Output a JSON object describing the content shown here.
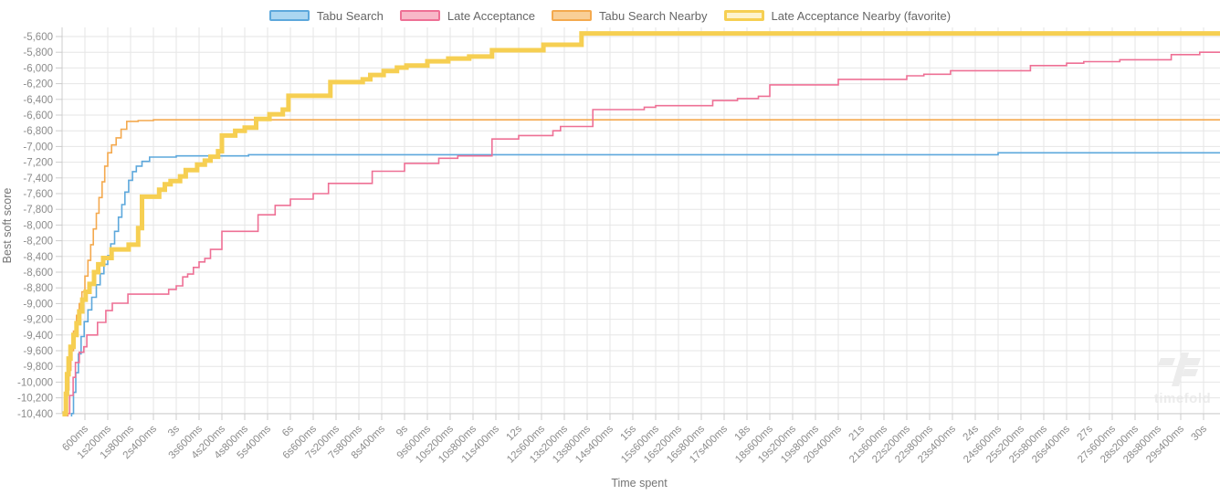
{
  "legend": {
    "items": [
      {
        "label": "Tabu Search",
        "line_color": "#5da8dc",
        "swatch_fill": "#abd6f1",
        "favorite": false
      },
      {
        "label": "Late Acceptance",
        "line_color": "#ee7095",
        "swatch_fill": "#f8b8c8",
        "favorite": false
      },
      {
        "label": "Tabu Search Nearby",
        "line_color": "#f4a94e",
        "swatch_fill": "#f9cf97",
        "favorite": false
      },
      {
        "label": "Late Acceptance Nearby (favorite)",
        "line_color": "#f6cf52",
        "swatch_fill": "#fdf3cd",
        "favorite": true
      }
    ],
    "position": "top"
  },
  "axes": {
    "x_title": "Time spent",
    "y_title": "Best soft score",
    "x_tick_interval_s": 0.6,
    "x_tick_labels": [
      "600ms",
      "1s200ms",
      "1s800ms",
      "2s400ms",
      "3s",
      "3s600ms",
      "4s200ms",
      "4s800ms",
      "5s400ms",
      "6s",
      "6s600ms",
      "7s200ms",
      "7s800ms",
      "8s400ms",
      "9s",
      "9s600ms",
      "10s200ms",
      "10s800ms",
      "11s400ms",
      "12s",
      "12s600ms",
      "13s200ms",
      "13s800ms",
      "14s400ms",
      "15s",
      "15s600ms",
      "16s200ms",
      "16s800ms",
      "17s400ms",
      "18s",
      "18s600ms",
      "19s200ms",
      "19s800ms",
      "20s400ms",
      "21s",
      "21s600ms",
      "22s200ms",
      "22s800ms",
      "23s400ms",
      "24s",
      "24s600ms",
      "25s200ms",
      "25s800ms",
      "26s400ms",
      "27s",
      "27s600ms",
      "28s200ms",
      "28s800ms",
      "29s400ms",
      "30s"
    ],
    "y_tick_start": -5600,
    "y_tick_step": -200,
    "y_tick_labels": [
      "-5,600",
      "-5,800",
      "-6,000",
      "-6,200",
      "-6,400",
      "-6,600",
      "-6,800",
      "-7,000",
      "-7,200",
      "-7,400",
      "-7,600",
      "-7,800",
      "-8,000",
      "-8,200",
      "-8,400",
      "-8,600",
      "-8,800",
      "-9,000",
      "-9,200",
      "-9,400",
      "-9,600",
      "-9,800",
      "-10,000",
      "-10,200",
      "-10,400"
    ],
    "grid_color": "#e6e6e6",
    "axis_line_color": "#cccccc",
    "tick_text_color": "#8c8c8c",
    "title_text_color": "#757575"
  },
  "chart_data": {
    "type": "line",
    "interpolation": "step-after",
    "title": "",
    "xlabel": "Time spent",
    "ylabel": "Best soft score",
    "xlim_s": [
      0,
      30.35
    ],
    "ylim": [
      -10430,
      -5480
    ],
    "grid": true,
    "legend_position": "top",
    "x_unit": "seconds",
    "series": [
      {
        "name": "Tabu Search",
        "color": "#5da8dc",
        "width": 1.6,
        "points": [
          [
            0.25,
            -10400
          ],
          [
            0.3,
            -10130
          ],
          [
            0.36,
            -9880
          ],
          [
            0.43,
            -9640
          ],
          [
            0.5,
            -9420
          ],
          [
            0.58,
            -9230
          ],
          [
            0.68,
            -9080
          ],
          [
            0.78,
            -8920
          ],
          [
            0.9,
            -8760
          ],
          [
            1.0,
            -8620
          ],
          [
            1.1,
            -8500
          ],
          [
            1.2,
            -8390
          ],
          [
            1.28,
            -8240
          ],
          [
            1.38,
            -8080
          ],
          [
            1.48,
            -7900
          ],
          [
            1.57,
            -7740
          ],
          [
            1.65,
            -7580
          ],
          [
            1.75,
            -7430
          ],
          [
            1.85,
            -7320
          ],
          [
            1.95,
            -7250
          ],
          [
            2.1,
            -7190
          ],
          [
            2.3,
            -7135
          ],
          [
            3.0,
            -7120
          ],
          [
            4.9,
            -7105
          ],
          [
            24.6,
            -7080
          ]
        ]
      },
      {
        "name": "Tabu Search Nearby",
        "color": "#f4a94e",
        "width": 1.6,
        "points": [
          [
            0.1,
            -10400
          ],
          [
            0.14,
            -10100
          ],
          [
            0.18,
            -9850
          ],
          [
            0.23,
            -9600
          ],
          [
            0.3,
            -9350
          ],
          [
            0.38,
            -9150
          ],
          [
            0.45,
            -9000
          ],
          [
            0.52,
            -8850
          ],
          [
            0.6,
            -8650
          ],
          [
            0.68,
            -8450
          ],
          [
            0.75,
            -8250
          ],
          [
            0.82,
            -8050
          ],
          [
            0.9,
            -7850
          ],
          [
            0.97,
            -7650
          ],
          [
            1.05,
            -7450
          ],
          [
            1.12,
            -7250
          ],
          [
            1.2,
            -7080
          ],
          [
            1.3,
            -6980
          ],
          [
            1.42,
            -6890
          ],
          [
            1.55,
            -6780
          ],
          [
            1.7,
            -6680
          ],
          [
            2.0,
            -6670
          ],
          [
            2.4,
            -6660
          ]
        ]
      },
      {
        "name": "Late Acceptance",
        "color": "#ee7095",
        "width": 1.6,
        "points": [
          [
            0.15,
            -10400
          ],
          [
            0.2,
            -10170
          ],
          [
            0.29,
            -9940
          ],
          [
            0.35,
            -9750
          ],
          [
            0.45,
            -9620
          ],
          [
            0.57,
            -9550
          ],
          [
            0.65,
            -9400
          ],
          [
            0.93,
            -9240
          ],
          [
            1.15,
            -9090
          ],
          [
            1.32,
            -8995
          ],
          [
            1.73,
            -8880
          ],
          [
            2.8,
            -8820
          ],
          [
            3.0,
            -8775
          ],
          [
            3.17,
            -8660
          ],
          [
            3.3,
            -8625
          ],
          [
            3.45,
            -8540
          ],
          [
            3.6,
            -8470
          ],
          [
            3.75,
            -8425
          ],
          [
            3.9,
            -8310
          ],
          [
            4.2,
            -8080
          ],
          [
            5.15,
            -7870
          ],
          [
            5.6,
            -7750
          ],
          [
            6.0,
            -7670
          ],
          [
            6.6,
            -7600
          ],
          [
            7.0,
            -7470
          ],
          [
            8.15,
            -7315
          ],
          [
            9.0,
            -7215
          ],
          [
            9.9,
            -7150
          ],
          [
            10.4,
            -7120
          ],
          [
            11.3,
            -6905
          ],
          [
            12.0,
            -6860
          ],
          [
            12.9,
            -6800
          ],
          [
            13.1,
            -6745
          ],
          [
            13.95,
            -6530
          ],
          [
            15.3,
            -6500
          ],
          [
            15.6,
            -6480
          ],
          [
            17.1,
            -6415
          ],
          [
            17.75,
            -6390
          ],
          [
            18.3,
            -6360
          ],
          [
            18.6,
            -6215
          ],
          [
            20.4,
            -6145
          ],
          [
            22.2,
            -6100
          ],
          [
            22.65,
            -6080
          ],
          [
            23.35,
            -6035
          ],
          [
            25.45,
            -5970
          ],
          [
            26.4,
            -5940
          ],
          [
            26.85,
            -5920
          ],
          [
            27.8,
            -5895
          ],
          [
            29.15,
            -5830
          ],
          [
            29.9,
            -5800
          ]
        ]
      },
      {
        "name": "Late Acceptance Nearby (favorite)",
        "color": "#f6cf52",
        "width": 5,
        "points": [
          [
            0.07,
            -10400
          ],
          [
            0.1,
            -10150
          ],
          [
            0.13,
            -9900
          ],
          [
            0.17,
            -9700
          ],
          [
            0.22,
            -9550
          ],
          [
            0.3,
            -9400
          ],
          [
            0.38,
            -9250
          ],
          [
            0.45,
            -9100
          ],
          [
            0.53,
            -8950
          ],
          [
            0.62,
            -8850
          ],
          [
            0.72,
            -8750
          ],
          [
            0.84,
            -8600
          ],
          [
            0.95,
            -8500
          ],
          [
            1.08,
            -8420
          ],
          [
            1.3,
            -8310
          ],
          [
            1.75,
            -8250
          ],
          [
            2.0,
            -8040
          ],
          [
            2.1,
            -7640
          ],
          [
            2.55,
            -7550
          ],
          [
            2.7,
            -7480
          ],
          [
            2.85,
            -7440
          ],
          [
            3.1,
            -7380
          ],
          [
            3.25,
            -7300
          ],
          [
            3.55,
            -7230
          ],
          [
            3.75,
            -7180
          ],
          [
            3.9,
            -7130
          ],
          [
            4.1,
            -7060
          ],
          [
            4.2,
            -6860
          ],
          [
            4.55,
            -6800
          ],
          [
            4.8,
            -6760
          ],
          [
            5.1,
            -6650
          ],
          [
            5.45,
            -6590
          ],
          [
            5.8,
            -6530
          ],
          [
            5.95,
            -6355
          ],
          [
            7.05,
            -6180
          ],
          [
            7.9,
            -6145
          ],
          [
            8.1,
            -6090
          ],
          [
            8.45,
            -6040
          ],
          [
            8.8,
            -5995
          ],
          [
            9.05,
            -5970
          ],
          [
            9.6,
            -5915
          ],
          [
            10.15,
            -5880
          ],
          [
            10.7,
            -5855
          ],
          [
            11.3,
            -5775
          ],
          [
            12.65,
            -5705
          ],
          [
            13.65,
            -5560
          ]
        ]
      }
    ]
  },
  "watermark": {
    "text": "timefold",
    "color": "#ececec"
  }
}
